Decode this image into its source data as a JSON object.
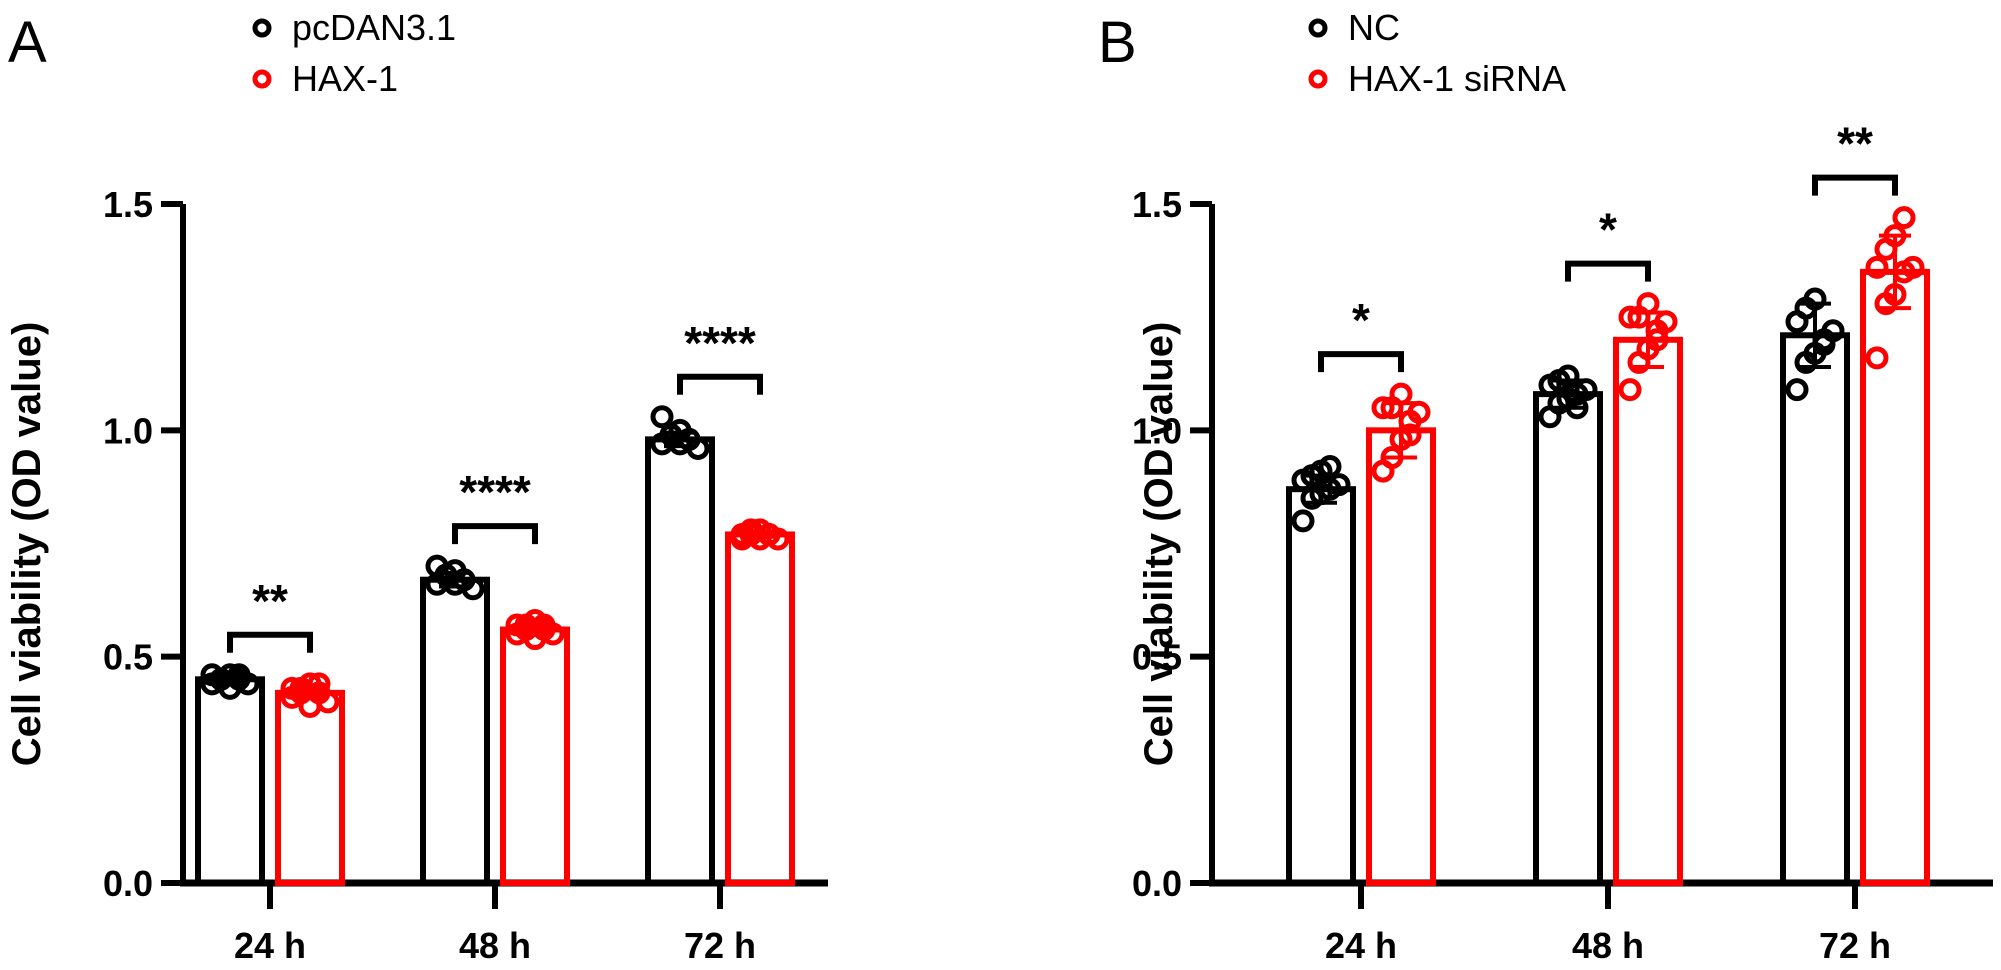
{
  "chart_data": [
    {
      "type": "bar",
      "panel": "A",
      "title": "",
      "xlabel": "",
      "ylabel": "Cell viability (OD value)",
      "ylim": [
        0,
        1.5
      ],
      "yticks": [
        0.0,
        0.5,
        1.0,
        1.5
      ],
      "ytick_labels": [
        "0.0",
        "0.5",
        "1.0",
        "1.5"
      ],
      "categories": [
        "24 h",
        "48 h",
        "72 h"
      ],
      "legend": {
        "placement": "top",
        "entries": [
          "pcDAN3.1",
          "HAX-1"
        ]
      },
      "grid": false,
      "series": [
        {
          "name": "pcDAN3.1",
          "color": "#000000",
          "values": [
            0.45,
            0.67,
            0.98
          ],
          "error": [
            0.01,
            0.015,
            0.015
          ],
          "points": [
            [
              0.44,
              0.45,
              0.46,
              0.45,
              0.44,
              0.46,
              0.45,
              0.43,
              0.46
            ],
            [
              0.66,
              0.68,
              0.69,
              0.67,
              0.65,
              0.7,
              0.68,
              0.66,
              0.67
            ],
            [
              0.97,
              0.99,
              1.0,
              0.98,
              0.96,
              1.03,
              0.99,
              0.97,
              0.98
            ]
          ]
        },
        {
          "name": "HAX-1",
          "color": "#ff0000",
          "values": [
            0.42,
            0.56,
            0.77
          ],
          "error": [
            0.01,
            0.01,
            0.005
          ],
          "points": [
            [
              0.41,
              0.43,
              0.44,
              0.42,
              0.4,
              0.43,
              0.42,
              0.39,
              0.44
            ],
            [
              0.55,
              0.57,
              0.58,
              0.56,
              0.55,
              0.57,
              0.56,
              0.54,
              0.57
            ],
            [
              0.76,
              0.77,
              0.78,
              0.77,
              0.76,
              0.77,
              0.78,
              0.76,
              0.77
            ]
          ]
        }
      ],
      "significance": [
        "**",
        "****",
        "****"
      ]
    },
    {
      "type": "bar",
      "panel": "B",
      "title": "",
      "xlabel": "",
      "ylabel": "Cell viability (OD value)",
      "ylim": [
        0,
        1.5
      ],
      "yticks": [
        0.0,
        0.5,
        1.0,
        1.5
      ],
      "ytick_labels": [
        "0.0",
        "0.5",
        "1.0",
        "1.5"
      ],
      "categories": [
        "24 h",
        "48 h",
        "72 h"
      ],
      "legend": {
        "placement": "top",
        "entries": [
          "NC",
          "HAX-1 siRNA"
        ]
      },
      "grid": false,
      "series": [
        {
          "name": "NC",
          "color": "#000000",
          "values": [
            0.87,
            1.08,
            1.21
          ],
          "error": [
            0.03,
            0.03,
            0.07
          ],
          "points": [
            [
              0.8,
              0.85,
              0.86,
              0.87,
              0.88,
              0.89,
              0.9,
              0.91,
              0.92
            ],
            [
              1.03,
              1.06,
              1.07,
              1.08,
              1.09,
              1.1,
              1.11,
              1.12,
              1.05
            ],
            [
              1.09,
              1.15,
              1.17,
              1.2,
              1.22,
              1.24,
              1.27,
              1.29,
              1.19
            ]
          ]
        },
        {
          "name": "HAX-1 siRNA",
          "color": "#ff0000",
          "values": [
            1.0,
            1.2,
            1.35
          ],
          "error": [
            0.06,
            0.06,
            0.08
          ],
          "points": [
            [
              0.91,
              0.94,
              0.98,
              1.02,
              1.04,
              1.05,
              1.05,
              1.08,
              0.99
            ],
            [
              1.09,
              1.15,
              1.18,
              1.22,
              1.24,
              1.25,
              1.25,
              1.28,
              1.2
            ],
            [
              1.16,
              1.28,
              1.3,
              1.35,
              1.36,
              1.36,
              1.4,
              1.43,
              1.47
            ]
          ]
        }
      ],
      "significance": [
        "*",
        "*",
        "**"
      ]
    }
  ]
}
